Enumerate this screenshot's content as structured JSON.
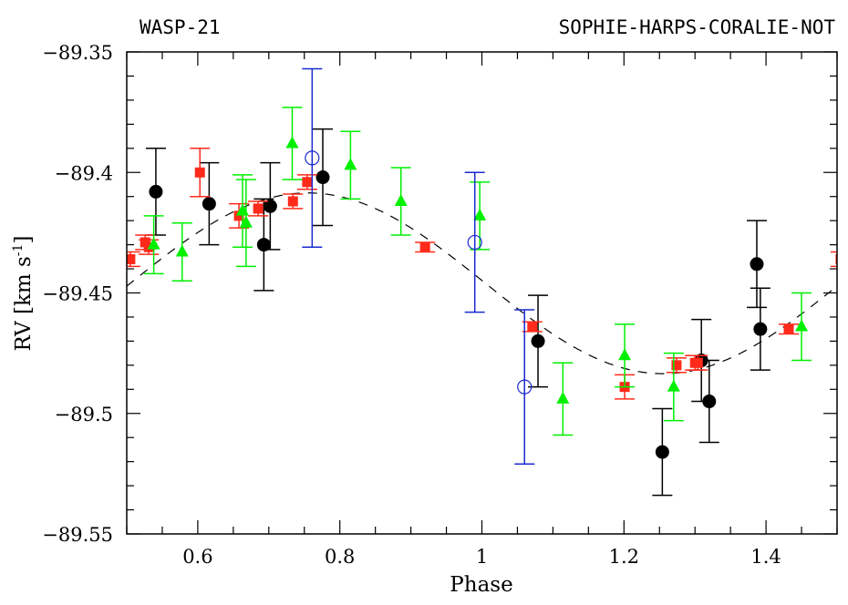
{
  "chart_data": {
    "type": "scatter",
    "title_left": "WASP-21",
    "title_right": "SOPHIE-HARPS-CORALIE-NOT",
    "xlabel": "Phase",
    "ylabel": "RV [km s",
    "ylabel_sup": "-1",
    "ylabel_close": "]",
    "xlim": [
      0.5,
      1.5
    ],
    "ylim": [
      -89.55,
      -89.35
    ],
    "xticks": [
      0.6,
      0.8,
      1.0,
      1.2,
      1.4
    ],
    "xtick_labels": [
      "0.6",
      "0.8",
      "1",
      "1.2",
      "1.4"
    ],
    "yticks": [
      -89.35,
      -89.4,
      -89.45,
      -89.5,
      -89.55
    ],
    "ytick_labels": [
      "−89.35",
      "−89.4",
      "−89.45",
      "−89.5",
      "−89.55"
    ],
    "x_minor_step": 0.05,
    "y_minor_step": 0.01,
    "grid": false,
    "colors": {
      "black_circle": "#000000",
      "red_square": "#ff2a1a",
      "green_triangle": "#00f000",
      "blue_circle": "#1a2ad0",
      "model": "#000000"
    },
    "series": [
      {
        "name": "filled-circles",
        "marker": "filled-circle",
        "color_key": "black_circle",
        "points": [
          {
            "x": 0.541,
            "y": -89.408,
            "err": 0.018
          },
          {
            "x": 0.616,
            "y": -89.413,
            "err": 0.017
          },
          {
            "x": 0.693,
            "y": -89.43,
            "err": 0.019
          },
          {
            "x": 0.702,
            "y": -89.414,
            "err": 0.018
          },
          {
            "x": 0.776,
            "y": -89.402,
            "err": 0.02
          },
          {
            "x": 1.079,
            "y": -89.47,
            "err": 0.019
          },
          {
            "x": 1.254,
            "y": -89.516,
            "err": 0.018
          },
          {
            "x": 1.309,
            "y": -89.478,
            "err": 0.017
          },
          {
            "x": 1.32,
            "y": -89.495,
            "err": 0.017
          },
          {
            "x": 1.387,
            "y": -89.438,
            "err": 0.018
          },
          {
            "x": 1.392,
            "y": -89.465,
            "err": 0.017
          }
        ]
      },
      {
        "name": "squares",
        "marker": "square",
        "color_key": "red_square",
        "points": [
          {
            "x": 0.505,
            "y": -89.436,
            "err": 0.003
          },
          {
            "x": 0.526,
            "y": -89.429,
            "err": 0.003
          },
          {
            "x": 0.531,
            "y": -89.431,
            "err": 0.003
          },
          {
            "x": 0.603,
            "y": -89.4,
            "err": 0.01
          },
          {
            "x": 0.658,
            "y": -89.418,
            "err": 0.005
          },
          {
            "x": 0.685,
            "y": -89.415,
            "err": 0.003
          },
          {
            "x": 0.734,
            "y": -89.412,
            "err": 0.003
          },
          {
            "x": 0.754,
            "y": -89.404,
            "err": 0.003
          },
          {
            "x": 0.92,
            "y": -89.431,
            "err": 0.002
          },
          {
            "x": 1.071,
            "y": -89.464,
            "err": 0.002
          },
          {
            "x": 1.201,
            "y": -89.489,
            "err": 0.005
          },
          {
            "x": 1.274,
            "y": -89.48,
            "err": 0.003
          },
          {
            "x": 1.3,
            "y": -89.479,
            "err": 0.003
          },
          {
            "x": 1.304,
            "y": -89.479,
            "err": 0.003
          },
          {
            "x": 1.432,
            "y": -89.465,
            "err": 0.002
          },
          {
            "x": 1.505,
            "y": -89.436,
            "err": 0.003
          }
        ]
      },
      {
        "name": "triangles",
        "marker": "triangle",
        "color_key": "green_triangle",
        "points": [
          {
            "x": 0.538,
            "y": -89.43,
            "err": 0.012
          },
          {
            "x": 0.578,
            "y": -89.433,
            "err": 0.012
          },
          {
            "x": 0.663,
            "y": -89.416,
            "err": 0.015
          },
          {
            "x": 0.668,
            "y": -89.421,
            "err": 0.018
          },
          {
            "x": 0.733,
            "y": -89.388,
            "err": 0.015
          },
          {
            "x": 0.815,
            "y": -89.397,
            "err": 0.014
          },
          {
            "x": 0.886,
            "y": -89.412,
            "err": 0.014
          },
          {
            "x": 0.997,
            "y": -89.418,
            "err": 0.014
          },
          {
            "x": 1.114,
            "y": -89.494,
            "err": 0.015
          },
          {
            "x": 1.201,
            "y": -89.476,
            "err": 0.013
          },
          {
            "x": 1.27,
            "y": -89.489,
            "err": 0.014
          },
          {
            "x": 1.45,
            "y": -89.464,
            "err": 0.014
          }
        ]
      },
      {
        "name": "open-circles",
        "marker": "open-circle",
        "color_key": "blue_circle",
        "points": [
          {
            "x": 0.761,
            "y": -89.394,
            "err": 0.037
          },
          {
            "x": 0.99,
            "y": -89.429,
            "err": 0.029
          },
          {
            "x": 1.06,
            "y": -89.489,
            "err": 0.032
          }
        ]
      }
    ],
    "model": {
      "name": "sinusoidal-orbit-fit",
      "style": "dashed",
      "gamma": -89.446,
      "K": 0.0375,
      "phase_of_max": 0.755
    }
  }
}
